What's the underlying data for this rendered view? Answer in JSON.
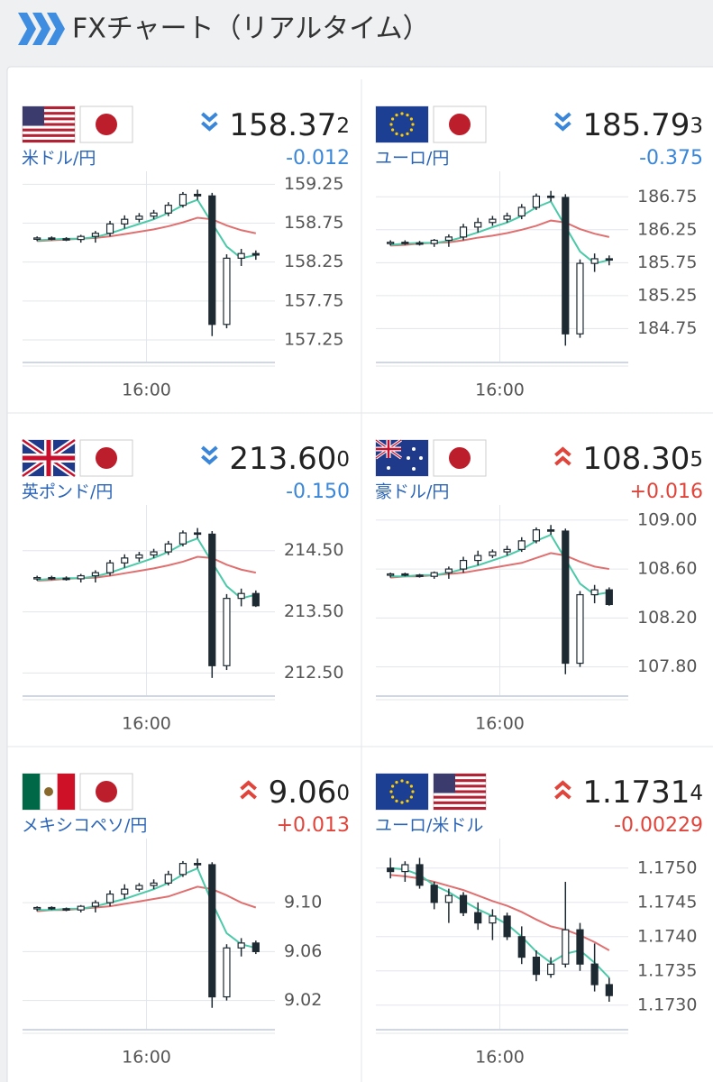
{
  "header": {
    "title": "FXチャート（リアルタイム）"
  },
  "panels": [
    {
      "pair": "米ドル/円",
      "price": "158.37",
      "price_small": "2",
      "change": "-0.012",
      "chart_data": {
        "type": "candlestick",
        "xlim": [
          0,
          17
        ],
        "xticks": [
          {
            "value": 8.5,
            "label": "16:00"
          }
        ],
        "ylim": [
          157.1,
          159.3
        ],
        "yticks": [
          157.25,
          157.75,
          158.25,
          158.75,
          159.25
        ],
        "ohlc": [
          [
            158.55,
            158.58,
            158.52,
            158.56
          ],
          [
            158.56,
            158.58,
            158.53,
            158.55
          ],
          [
            158.55,
            158.57,
            158.52,
            158.54
          ],
          [
            158.54,
            158.6,
            158.5,
            158.58
          ],
          [
            158.58,
            158.65,
            158.5,
            158.62
          ],
          [
            158.62,
            158.78,
            158.58,
            158.74
          ],
          [
            158.74,
            158.85,
            158.68,
            158.8
          ],
          [
            158.8,
            158.88,
            158.76,
            158.84
          ],
          [
            158.84,
            158.92,
            158.8,
            158.88
          ],
          [
            158.88,
            159.02,
            158.84,
            158.98
          ],
          [
            158.98,
            159.15,
            158.95,
            159.12
          ],
          [
            159.12,
            159.18,
            159.05,
            159.1
          ],
          [
            159.1,
            159.14,
            157.3,
            157.45
          ],
          [
            157.45,
            158.35,
            157.4,
            158.3
          ],
          [
            158.3,
            158.42,
            158.2,
            158.36
          ],
          [
            158.36,
            158.4,
            158.28,
            158.34
          ]
        ],
        "ma_fast": {
          "color": "#4cc9a8",
          "values": [
            158.53,
            158.54,
            158.55,
            158.55,
            158.57,
            158.62,
            158.68,
            158.74,
            158.8,
            158.88,
            158.98,
            159.05,
            158.75,
            158.45,
            158.3,
            158.34
          ]
        },
        "ma_slow": {
          "color": "#e07070",
          "values": [
            158.52,
            158.53,
            158.54,
            158.55,
            158.56,
            158.58,
            158.61,
            158.64,
            158.67,
            158.71,
            158.76,
            158.82,
            158.8,
            158.72,
            158.66,
            158.62
          ]
        }
      }
    },
    {
      "pair": "ユーロ/円",
      "price": "185.79",
      "price_small": "3",
      "change": "-0.375",
      "chart_data": {
        "type": "candlestick",
        "xlim": [
          0,
          17
        ],
        "xticks": [
          {
            "value": 8.5,
            "label": "16:00"
          }
        ],
        "ylim": [
          184.4,
          187.0
        ],
        "yticks": [
          184.75,
          185.25,
          185.75,
          186.25,
          186.75
        ],
        "ohlc": [
          [
            186.05,
            186.09,
            186.01,
            186.06
          ],
          [
            186.06,
            186.09,
            186.02,
            186.05
          ],
          [
            186.05,
            186.08,
            186.01,
            186.04
          ],
          [
            186.04,
            186.11,
            185.99,
            186.09
          ],
          [
            186.09,
            186.18,
            185.99,
            186.14
          ],
          [
            186.14,
            186.34,
            186.09,
            186.29
          ],
          [
            186.29,
            186.43,
            186.21,
            186.36
          ],
          [
            186.36,
            186.46,
            186.31,
            186.41
          ],
          [
            186.41,
            186.51,
            186.36,
            186.46
          ],
          [
            186.46,
            186.64,
            186.41,
            186.59
          ],
          [
            186.59,
            186.8,
            186.55,
            186.76
          ],
          [
            186.76,
            186.84,
            186.68,
            186.74
          ],
          [
            186.74,
            186.79,
            184.49,
            184.67
          ],
          [
            184.67,
            185.8,
            184.61,
            185.74
          ],
          [
            185.74,
            185.89,
            185.61,
            185.81
          ],
          [
            185.81,
            185.86,
            185.71,
            185.79
          ]
        ],
        "ma_fast": {
          "color": "#4cc9a8",
          "values": [
            186.02,
            186.04,
            186.05,
            186.05,
            186.08,
            186.14,
            186.21,
            186.29,
            186.36,
            186.46,
            186.59,
            186.68,
            186.3,
            185.92,
            185.74,
            185.79
          ]
        },
        "ma_slow": {
          "color": "#e07070",
          "values": [
            186.01,
            186.02,
            186.04,
            186.05,
            186.06,
            186.09,
            186.13,
            186.16,
            186.2,
            186.25,
            186.31,
            186.39,
            186.36,
            186.26,
            186.19,
            186.14
          ]
        }
      }
    },
    {
      "pair": "英ポンド/円",
      "price": "213.60",
      "price_small": "0",
      "change": "-0.150",
      "chart_data": {
        "type": "candlestick",
        "xlim": [
          0,
          17
        ],
        "xticks": [
          {
            "value": 8.5,
            "label": "16:00"
          }
        ],
        "ylim": [
          212.3,
          215.1
        ],
        "yticks": [
          {
            "value": 212.5,
            "label": "212.50"
          },
          {
            "value": 213.5,
            "label": "213.50"
          },
          {
            "value": 214.5,
            "label": "214.50"
          }
        ],
        "ohlc": [
          [
            214.05,
            214.09,
            214.01,
            214.06
          ],
          [
            214.06,
            214.09,
            214.02,
            214.05
          ],
          [
            214.05,
            214.08,
            214.01,
            214.04
          ],
          [
            214.04,
            214.12,
            213.98,
            214.09
          ],
          [
            214.09,
            214.18,
            213.98,
            214.14
          ],
          [
            214.14,
            214.35,
            214.09,
            214.3
          ],
          [
            214.3,
            214.44,
            214.22,
            214.38
          ],
          [
            214.38,
            214.48,
            214.32,
            214.43
          ],
          [
            214.43,
            214.53,
            214.38,
            214.48
          ],
          [
            214.48,
            214.66,
            214.43,
            214.61
          ],
          [
            214.61,
            214.83,
            214.57,
            214.79
          ],
          [
            214.79,
            214.87,
            214.7,
            214.77
          ],
          [
            214.77,
            214.82,
            212.42,
            212.62
          ],
          [
            212.62,
            213.79,
            212.55,
            213.72
          ],
          [
            213.72,
            213.88,
            213.59,
            213.8
          ],
          [
            213.8,
            213.85,
            213.58,
            213.6
          ]
        ],
        "ma_fast": {
          "color": "#4cc9a8",
          "values": [
            214.02,
            214.04,
            214.05,
            214.05,
            214.08,
            214.14,
            214.22,
            214.3,
            214.38,
            214.48,
            214.61,
            214.7,
            214.31,
            213.92,
            213.72,
            213.78
          ]
        },
        "ma_slow": {
          "color": "#e07070",
          "values": [
            214.01,
            214.02,
            214.04,
            214.05,
            214.06,
            214.09,
            214.13,
            214.17,
            214.21,
            214.26,
            214.32,
            214.4,
            214.38,
            214.27,
            214.19,
            214.14
          ]
        }
      }
    },
    {
      "pair": "豪ドル/円",
      "price": "108.30",
      "price_small": "5",
      "change": "+0.016",
      "chart_data": {
        "type": "candlestick",
        "xlim": [
          0,
          17
        ],
        "xticks": [
          {
            "value": 8.5,
            "label": "16:00"
          }
        ],
        "ylim": [
          107.65,
          109.05
        ],
        "yticks": [
          {
            "value": 107.8,
            "label": "107.80"
          },
          {
            "value": 108.2,
            "label": "108.20"
          },
          {
            "value": 108.6,
            "label": "108.60"
          },
          {
            "value": 109,
            "label": "109.00"
          }
        ],
        "ohlc": [
          [
            108.55,
            108.57,
            108.53,
            108.56
          ],
          [
            108.56,
            108.57,
            108.54,
            108.55
          ],
          [
            108.55,
            108.56,
            108.53,
            108.54
          ],
          [
            108.54,
            108.58,
            108.52,
            108.57
          ],
          [
            108.57,
            108.62,
            108.52,
            108.6
          ],
          [
            108.6,
            108.7,
            108.57,
            108.67
          ],
          [
            108.67,
            108.75,
            108.63,
            108.71
          ],
          [
            108.71,
            108.76,
            108.69,
            108.74
          ],
          [
            108.74,
            108.79,
            108.71,
            108.76
          ],
          [
            108.76,
            108.86,
            108.74,
            108.83
          ],
          [
            108.83,
            108.94,
            108.81,
            108.92
          ],
          [
            108.92,
            108.96,
            108.88,
            108.91
          ],
          [
            108.91,
            108.93,
            107.74,
            107.83
          ],
          [
            107.83,
            108.42,
            107.8,
            108.39
          ],
          [
            108.39,
            108.47,
            108.32,
            108.43
          ],
          [
            108.43,
            108.45,
            108.3,
            108.31
          ]
        ],
        "ma_fast": {
          "color": "#4cc9a8",
          "values": [
            108.54,
            108.54,
            108.55,
            108.55,
            108.57,
            108.6,
            108.63,
            108.67,
            108.71,
            108.76,
            108.83,
            108.88,
            108.68,
            108.48,
            108.39,
            108.41
          ]
        },
        "ma_slow": {
          "color": "#e07070",
          "values": [
            108.53,
            108.54,
            108.54,
            108.55,
            108.56,
            108.57,
            108.59,
            108.61,
            108.63,
            108.65,
            108.69,
            108.73,
            108.71,
            108.66,
            108.62,
            108.6
          ]
        }
      }
    },
    {
      "pair": "メキシコペソ/円",
      "price": "9.06",
      "price_small": "0",
      "change": "+0.013",
      "chart_data": {
        "type": "candlestick",
        "xlim": [
          0,
          17
        ],
        "xticks": [
          {
            "value": 8.5,
            "label": "16:00"
          }
        ],
        "ylim": [
          9.005,
          9.145
        ],
        "yticks": [
          9.02,
          9.06,
          {
            "value": 9.1,
            "label": "9.10"
          }
        ],
        "ohlc": [
          [
            9.095,
            9.097,
            9.093,
            9.096
          ],
          [
            9.096,
            9.097,
            9.094,
            9.095
          ],
          [
            9.095,
            9.096,
            9.093,
            9.094
          ],
          [
            9.094,
            9.098,
            9.092,
            9.097
          ],
          [
            9.097,
            9.102,
            9.092,
            9.1
          ],
          [
            9.1,
            9.11,
            9.097,
            9.107
          ],
          [
            9.107,
            9.115,
            9.103,
            9.111
          ],
          [
            9.111,
            9.116,
            9.109,
            9.114
          ],
          [
            9.114,
            9.119,
            9.111,
            9.116
          ],
          [
            9.116,
            9.126,
            9.114,
            9.123
          ],
          [
            9.123,
            9.134,
            9.121,
            9.132
          ],
          [
            9.132,
            9.136,
            9.128,
            9.131
          ],
          [
            9.131,
            9.133,
            9.014,
            9.023
          ],
          [
            9.023,
            9.066,
            9.02,
            9.063
          ],
          [
            9.063,
            9.071,
            9.056,
            9.067
          ],
          [
            9.067,
            9.069,
            9.058,
            9.06
          ]
        ],
        "ma_fast": {
          "color": "#4cc9a8",
          "values": [
            9.094,
            9.094,
            9.095,
            9.095,
            9.097,
            9.1,
            9.103,
            9.107,
            9.111,
            9.116,
            9.123,
            9.128,
            9.1,
            9.075,
            9.066,
            9.063
          ]
        },
        "ma_slow": {
          "color": "#e07070",
          "values": [
            9.093,
            9.094,
            9.094,
            9.095,
            9.096,
            9.097,
            9.099,
            9.101,
            9.103,
            9.105,
            9.109,
            9.113,
            9.111,
            9.106,
            9.1,
            9.096
          ]
        }
      }
    },
    {
      "pair": "ユーロ/米ドル",
      "price": "1.1731",
      "price_small": "4",
      "change": "-0.00229",
      "chart_data": {
        "type": "candlestick",
        "xlim": [
          0,
          17
        ],
        "xticks": [
          {
            "value": 8.5,
            "label": "16:00"
          }
        ],
        "ylim": [
          1.1728,
          1.1753
        ],
        "yticks": [
          {
            "value": 1.173,
            "label": "1.1730"
          },
          1.1735,
          {
            "value": 1.174,
            "label": "1.1740"
          },
          1.1745,
          {
            "value": 1.175,
            "label": "1.1750"
          }
        ],
        "ohlc": [
          [
            1.175,
            1.17515,
            1.17485,
            1.17495
          ],
          [
            1.17495,
            1.1751,
            1.1748,
            1.17505
          ],
          [
            1.17505,
            1.17515,
            1.1747,
            1.17475
          ],
          [
            1.17475,
            1.1748,
            1.1744,
            1.1745
          ],
          [
            1.1745,
            1.1747,
            1.1742,
            1.1746
          ],
          [
            1.1746,
            1.17465,
            1.1743,
            1.17435
          ],
          [
            1.17435,
            1.1745,
            1.1741,
            1.1742
          ],
          [
            1.1742,
            1.1744,
            1.17395,
            1.1743
          ],
          [
            1.1743,
            1.17435,
            1.17395,
            1.174
          ],
          [
            1.174,
            1.17415,
            1.1736,
            1.1737
          ],
          [
            1.1737,
            1.1738,
            1.17335,
            1.17345
          ],
          [
            1.17345,
            1.1737,
            1.1734,
            1.1736
          ],
          [
            1.1736,
            1.1748,
            1.17355,
            1.1741
          ],
          [
            1.1741,
            1.1742,
            1.1735,
            1.1736
          ],
          [
            1.1736,
            1.1739,
            1.1732,
            1.1733
          ],
          [
            1.1733,
            1.1734,
            1.17305,
            1.17314
          ]
        ],
        "ma_fast": {
          "color": "#4cc9a8",
          "values": [
            1.175,
            1.17498,
            1.1749,
            1.17475,
            1.17465,
            1.17452,
            1.1744,
            1.1743,
            1.17418,
            1.174,
            1.17378,
            1.17362,
            1.17375,
            1.1738,
            1.17362,
            1.1734
          ]
        },
        "ma_slow": {
          "color": "#e07070",
          "values": [
            1.1749,
            1.17488,
            1.17485,
            1.1748,
            1.17474,
            1.17468,
            1.1746,
            1.17452,
            1.17445,
            1.17436,
            1.17425,
            1.17415,
            1.1741,
            1.17402,
            1.17392,
            1.1738
          ]
        }
      }
    }
  ]
}
